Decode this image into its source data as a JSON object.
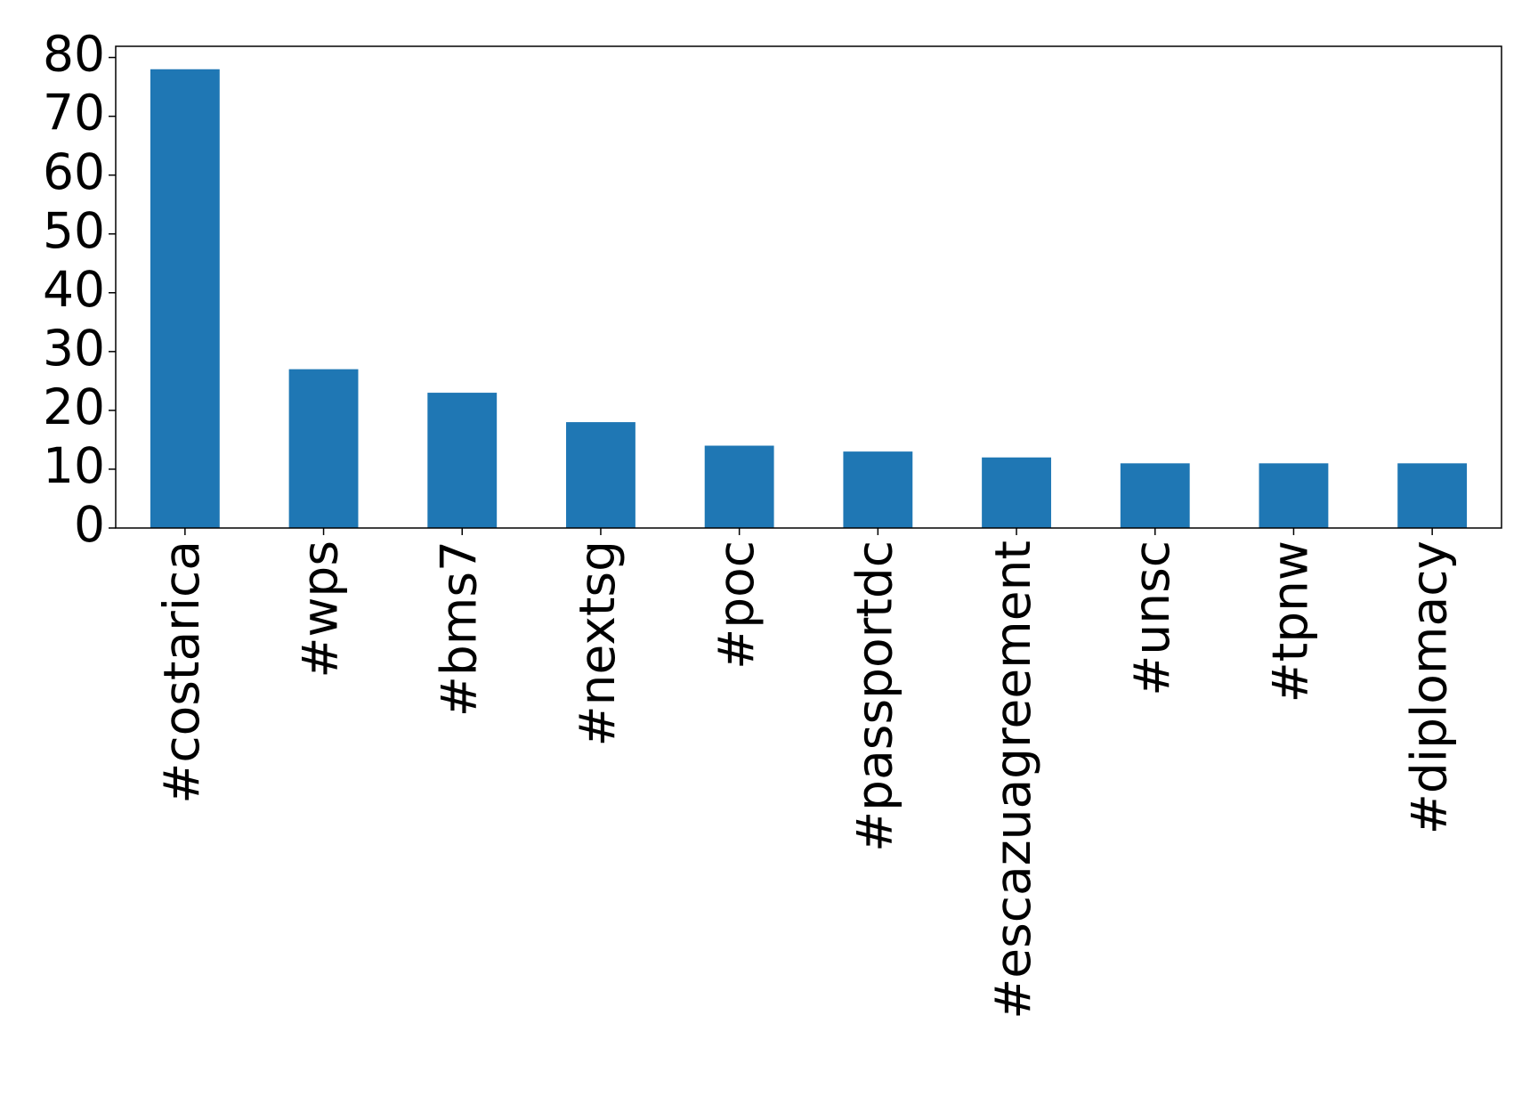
{
  "chart_data": {
    "type": "bar",
    "categories": [
      "#costarica",
      "#wps",
      "#bms7",
      "#nextsg",
      "#poc",
      "#passportdc",
      "#escazuagreement",
      "#unsc",
      "#tpnw",
      "#diplomacy"
    ],
    "values": [
      78,
      27,
      23,
      18,
      14,
      13,
      12,
      11,
      11,
      11
    ],
    "color": "#1f77b4",
    "ylim": [
      0,
      81.9
    ],
    "yticks": [
      0,
      10,
      20,
      30,
      40,
      50,
      60,
      70,
      80
    ],
    "grid": false
  }
}
